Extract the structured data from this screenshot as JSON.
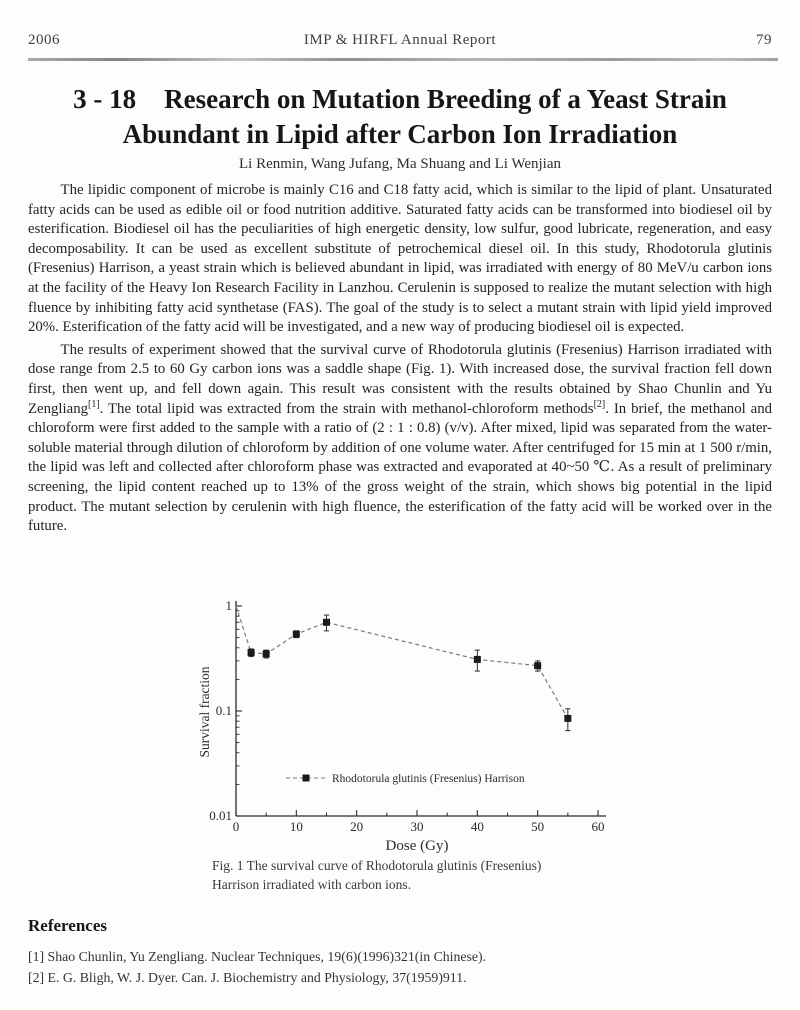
{
  "page": {
    "year": "2006",
    "journal": "IMP & HIRFL Annual Report",
    "page_number": "79"
  },
  "article": {
    "number": "3 - 18",
    "title_line1": "Research on Mutation Breeding of a Yeast Strain",
    "title_line2": "Abundant in Lipid after Carbon Ion Irradiation",
    "authors": "Li Renmin, Wang Jufang, Ma Shuang and Li Wenjian",
    "paragraph1": "The lipidic component of microbe is mainly C16 and C18 fatty acid, which is similar to the lipid of plant. Unsaturated fatty acids can be used as edible oil or food nutrition additive. Saturated fatty acids can be transformed into biodiesel oil by esterification. Biodiesel oil has the peculiarities of high energetic density, low sulfur, good lubricate, regeneration, and easy decomposability. It can be used as excellent substitute of petrochemical diesel oil. In this study, Rhodotorula glutinis (Fresenius) Harrison, a yeast strain which is believed abundant in lipid, was irradiated with energy of 80 MeV/u carbon ions at the facility of the Heavy Ion Research Facility in Lanzhou. Cerulenin is supposed to realize the mutant selection with high fluence by inhibiting fatty acid synthetase (FAS). The goal of the study is to select a mutant strain with lipid yield improved 20%. Esterification of the fatty acid will be investigated, and a new way of producing biodiesel oil is expected.",
    "paragraph2": {
      "a": "The results of experiment showed that the survival curve of Rhodotorula glutinis (Fresenius) Harrison irradiated with dose range from 2.5 to 60 Gy carbon ions was a saddle shape (Fig. 1). With increased dose, the survival fraction fell down first, then went up, and fell down again. This result was consistent with the results obtained by Shao Chunlin and Yu Zengliang",
      "ref1": "[1]",
      "b": ". The total lipid was extracted from the strain with methanol-chloroform methods",
      "ref2": "[2]",
      "c": ". In brief, the methanol and chloroform were first added to the sample with a ratio of (2 : 1 : 0.8) (v/v). After mixed, lipid was separated from the water-soluble material through dilution of chloroform by addition of one volume water. After centrifuged for 15 min at 1 500 r/min, the lipid was left and collected after chloroform phase was extracted and evaporated at 40~50 ℃. As a result of preliminary screening, the lipid content reached up to 13% of the gross weight of the strain, which shows big potential in the lipid product. The mutant selection by cerulenin with high fluence, the esterification of the fatty acid will be worked over in the future."
    }
  },
  "figure": {
    "caption_line1": "Fig. 1  The survival curve of Rhodotorula glutinis (Fresenius)",
    "caption_line2": "Harrison irradiated with carbon ions."
  },
  "chart_data": {
    "type": "line",
    "title": "",
    "xlabel": "Dose (Gy)",
    "ylabel": "Survival fraction",
    "xlim": [
      0,
      60
    ],
    "ylim": [
      0.01,
      1
    ],
    "y_scale": "log",
    "x_ticks": [
      "0",
      "10",
      "20",
      "30",
      "40",
      "50",
      "60"
    ],
    "x_tick_values": [
      0,
      10,
      20,
      30,
      40,
      50,
      60
    ],
    "x_minor_step": 5,
    "y_ticks": [
      "1",
      "0.1",
      "0.01"
    ],
    "y_tick_values": [
      1,
      0.1,
      0.01
    ],
    "grid": false,
    "legend_position": "inside-bottom-left",
    "marker": "filled-square",
    "line_style": "dashed",
    "ink_color": "#2b2b2b",
    "line_color": "#7a7a7a",
    "series": [
      {
        "name": "Rhodotorula glutinis (Fresenius) Harrison",
        "points": [
          {
            "dose": 0,
            "survival": 1.0,
            "err": 0
          },
          {
            "dose": 2.5,
            "survival": 0.36,
            "err": 0.03
          },
          {
            "dose": 5,
            "survival": 0.35,
            "err": 0.03
          },
          {
            "dose": 10,
            "survival": 0.54,
            "err": 0.04
          },
          {
            "dose": 15,
            "survival": 0.7,
            "err": 0.12
          },
          {
            "dose": 40,
            "survival": 0.31,
            "err": 0.07
          },
          {
            "dose": 50,
            "survival": 0.27,
            "err": 0.03
          },
          {
            "dose": 55,
            "survival": 0.085,
            "err": 0.02
          }
        ]
      }
    ]
  },
  "references": {
    "heading": "References",
    "items": [
      "[1] Shao Chunlin, Yu Zengliang. Nuclear Techniques, 19(6)(1996)321(in Chinese).",
      "[2] E. G. Bligh, W. J. Dyer. Can. J. Biochemistry and Physiology, 37(1959)911."
    ]
  }
}
